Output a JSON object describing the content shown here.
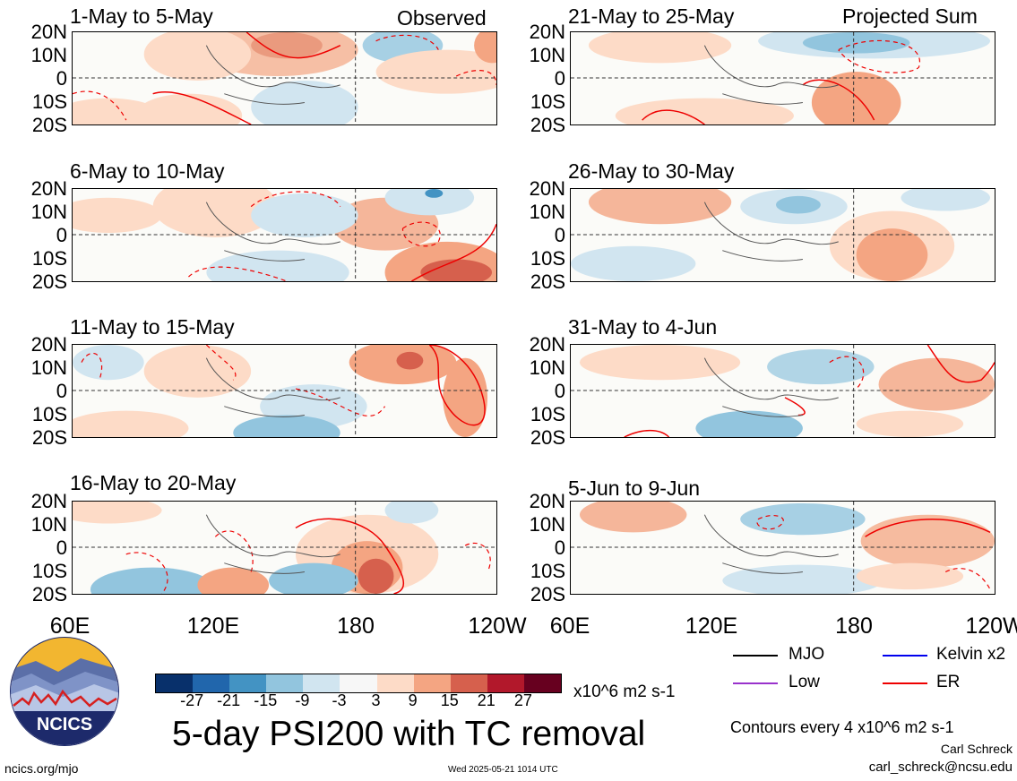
{
  "panels": [
    {
      "title": "1-May to 5-May",
      "label": "Observed"
    },
    {
      "title": "6-May to 10-May",
      "label": ""
    },
    {
      "title": "11-May to 15-May",
      "label": ""
    },
    {
      "title": "16-May to 20-May",
      "label": ""
    },
    {
      "title": "21-May to 25-May",
      "label": "Projected Sum"
    },
    {
      "title": "26-May to 30-May",
      "label": ""
    },
    {
      "title": "31-May to 4-Jun",
      "label": ""
    },
    {
      "title": "5-Jun to 9-Jun",
      "label": ""
    }
  ],
  "map": {
    "lat_ticks": [
      "20N",
      "10N",
      "0",
      "10S",
      "20S"
    ],
    "lon_ticks": [
      "60E",
      "120E",
      "180",
      "120W"
    ],
    "lon_range": [
      "60E",
      "120W"
    ],
    "lat_range": [
      "20S",
      "20N"
    ]
  },
  "colorbar": {
    "ticks": [
      "-27",
      "-21",
      "-15",
      "-9",
      "-3",
      "3",
      "9",
      "15",
      "21",
      "27"
    ],
    "colors": [
      "#08306b",
      "#2166ac",
      "#4393c3",
      "#92c5de",
      "#d1e5f0",
      "#f7f7f7",
      "#fddbc7",
      "#f4a582",
      "#d6604d",
      "#b2182b",
      "#67001f"
    ],
    "units": "x10^6 m2 s-1"
  },
  "title": "5-day PSI200 with TC removal",
  "legend": [
    {
      "label": "MJO",
      "color": "#000000"
    },
    {
      "label": "Kelvin x2",
      "color": "#0000ee"
    },
    {
      "label": "Low",
      "color": "#9932cc"
    },
    {
      "label": "ER",
      "color": "#ee0000"
    }
  ],
  "contours_note": "Contours every 4 x10^6 m2 s-1",
  "author": "Carl Schreck",
  "email": "carl_schreck@ncsu.edu",
  "website": "ncics.org/mjo",
  "timestamp": "Wed 2025-05-21 1014 UTC",
  "logo_text": "NCICS"
}
